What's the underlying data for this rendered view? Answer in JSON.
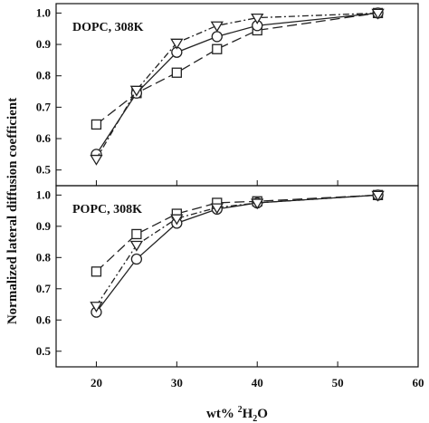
{
  "chart_data": [
    {
      "type": "line",
      "panel_label": "DOPC, 308K",
      "x": [
        20,
        25,
        30,
        35,
        40,
        55
      ],
      "series": [
        {
          "marker": "square",
          "dash": "long-dash",
          "values": [
            0.645,
            0.745,
            0.81,
            0.885,
            0.945,
            1.0
          ]
        },
        {
          "marker": "circle",
          "dash": "solid",
          "values": [
            0.55,
            0.745,
            0.875,
            0.925,
            0.96,
            1.0
          ]
        },
        {
          "marker": "triangle",
          "dash": "short-dash",
          "values": [
            0.535,
            0.755,
            0.905,
            0.96,
            0.985,
            1.0
          ]
        }
      ],
      "xlim": [
        15,
        60
      ],
      "ylim": [
        0.45,
        1.03
      ],
      "yticks": [
        "0.5",
        "0.6",
        "0.7",
        "0.8",
        "0.9",
        "1.0"
      ]
    },
    {
      "type": "line",
      "panel_label": "POPC, 308K",
      "x": [
        20,
        25,
        30,
        35,
        40,
        55
      ],
      "series": [
        {
          "marker": "square",
          "dash": "long-dash",
          "values": [
            0.755,
            0.875,
            0.94,
            0.975,
            0.98,
            1.0
          ]
        },
        {
          "marker": "circle",
          "dash": "solid",
          "values": [
            0.625,
            0.795,
            0.91,
            0.955,
            0.975,
            1.0
          ]
        },
        {
          "marker": "triangle",
          "dash": "short-dash",
          "values": [
            0.645,
            0.84,
            0.925,
            0.96,
            0.975,
            1.0
          ]
        }
      ],
      "xlim": [
        15,
        60
      ],
      "ylim": [
        0.45,
        1.03
      ],
      "yticks": [
        "0.5",
        "0.6",
        "0.7",
        "0.8",
        "0.9",
        "1.0"
      ]
    }
  ],
  "axes": {
    "ylabel": "Normalized lateral diffusion coefficient",
    "xlabel_prefix": "wt% ",
    "xlabel_superscript": "2",
    "xlabel_suffix": "H",
    "xlabel_subscript": "2",
    "xlabel_tail": "O",
    "xticks": [
      "20",
      "30",
      "40",
      "50",
      "60"
    ]
  },
  "style": {
    "line_color": "#222222",
    "marker_stroke": "#222222",
    "marker_fill": "#ffffff",
    "frame_color": "#111111"
  }
}
